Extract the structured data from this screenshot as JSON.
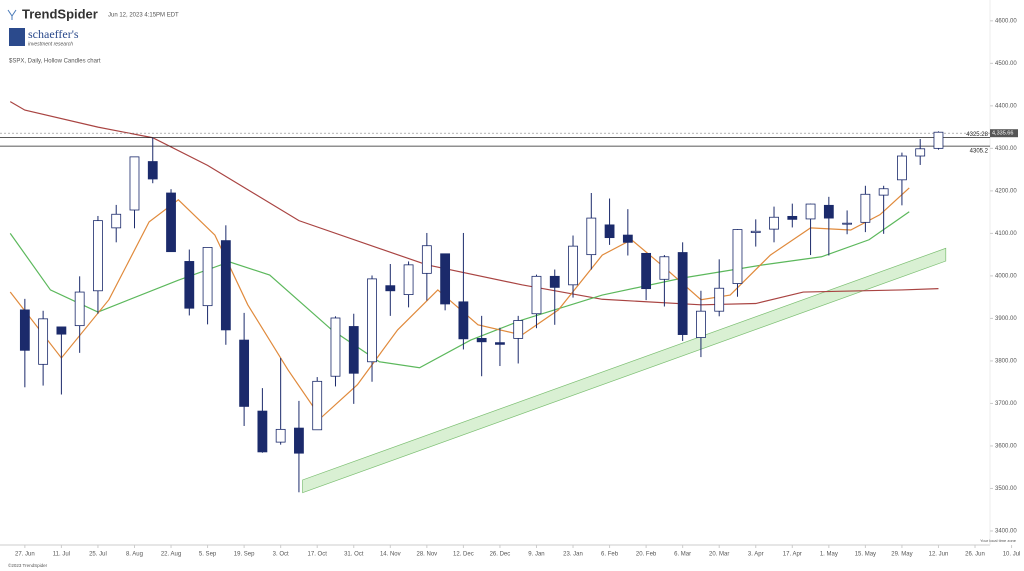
{
  "header": {
    "brand": "TrendSpider",
    "timestamp": "Jun 12, 2023 4:15PM EDT",
    "partner": "schaeffer's",
    "partner_tagline": "investment research",
    "chart_label": "$SPX, Daily, Hollow Candles chart"
  },
  "footer": {
    "copyright": "©2023 TrendSpider",
    "timezone": "Your local time zone"
  },
  "chart_data": {
    "type": "candlestick",
    "xlim": [
      -6.8,
      264.1
    ],
    "ylim": [
      3367,
      4649
    ],
    "xticks": [
      {
        "value": 0,
        "label": "27. Jun"
      },
      {
        "value": 10,
        "label": "11. Jul"
      },
      {
        "value": 20,
        "label": "25. Jul"
      },
      {
        "value": 30,
        "label": "8. Aug"
      },
      {
        "value": 40,
        "label": "22. Aug"
      },
      {
        "value": 50,
        "label": "5. Sep"
      },
      {
        "value": 60,
        "label": "19. Sep"
      },
      {
        "value": 70,
        "label": "3. Oct"
      },
      {
        "value": 80,
        "label": "17. Oct"
      },
      {
        "value": 90,
        "label": "31. Oct"
      },
      {
        "value": 100,
        "label": "14. Nov"
      },
      {
        "value": 110,
        "label": "28. Nov"
      },
      {
        "value": 120,
        "label": "12. Dec"
      },
      {
        "value": 130,
        "label": "26. Dec"
      },
      {
        "value": 140,
        "label": "9. Jan"
      },
      {
        "value": 150,
        "label": "23. Jan"
      },
      {
        "value": 160,
        "label": "6. Feb"
      },
      {
        "value": 170,
        "label": "20. Feb"
      },
      {
        "value": 180,
        "label": "6. Mar"
      },
      {
        "value": 190,
        "label": "20. Mar"
      },
      {
        "value": 200,
        "label": "3. Apr"
      },
      {
        "value": 210,
        "label": "17. Apr"
      },
      {
        "value": 220,
        "label": "1. May"
      },
      {
        "value": 230,
        "label": "15. May"
      },
      {
        "value": 240,
        "label": "29. May"
      },
      {
        "value": 250,
        "label": "12. Jun"
      },
      {
        "value": 260,
        "label": "26. Jun"
      },
      {
        "value": 270,
        "label": "10. Jul"
      }
    ],
    "yticks": [
      {
        "value": 3400,
        "label": "3400.00"
      },
      {
        "value": 3500,
        "label": "3500.00"
      },
      {
        "value": 3600,
        "label": "3600.00"
      },
      {
        "value": 3700,
        "label": "3700.00"
      },
      {
        "value": 3800,
        "label": "3800.00"
      },
      {
        "value": 3900,
        "label": "3900.00"
      },
      {
        "value": 4000,
        "label": "4000.00"
      },
      {
        "value": 4100,
        "label": "4100.00"
      },
      {
        "value": 4200,
        "label": "4200.00"
      },
      {
        "value": 4300,
        "label": "4300.00"
      },
      {
        "value": 4400,
        "label": "4400.00"
      },
      {
        "value": 4500,
        "label": "4500.00"
      },
      {
        "value": 4600,
        "label": "4600.00"
      }
    ],
    "color": "#1b2a6b",
    "candles": {
      "x": [
        0,
        5,
        10,
        15,
        20,
        25,
        30,
        35,
        40,
        45,
        50,
        55,
        60,
        65,
        70,
        75,
        80,
        85,
        90,
        95,
        100,
        105,
        110,
        115,
        120,
        125,
        130,
        135,
        140,
        145,
        150,
        155,
        160,
        165,
        170,
        175,
        180,
        185,
        190,
        195,
        200,
        205,
        210,
        215,
        220,
        225,
        230,
        235,
        240,
        245,
        250
      ],
      "open": [
        3920,
        3792,
        3880,
        3883,
        3965,
        4113,
        4155,
        4269,
        4195,
        4034,
        3930,
        4083,
        3849,
        3682,
        3609,
        3642,
        3638,
        3764,
        3881,
        3798,
        3977,
        3956,
        4006,
        4052,
        3939,
        3853,
        3843,
        3853,
        3911,
        3999,
        3979,
        4050,
        4120,
        4096,
        4053,
        3992,
        4055,
        3855,
        3917,
        3982,
        4102,
        4110,
        4140,
        4134,
        4166,
        4124,
        4126,
        4190,
        4226,
        4282,
        4300
      ],
      "high": [
        3946,
        3918,
        3880,
        3999,
        4141,
        4167,
        4280,
        4325,
        4204,
        4062,
        4067,
        4119,
        3913,
        3736,
        3807,
        3706,
        3762,
        3905,
        3911,
        4001,
        4028,
        4034,
        4101,
        4052,
        4101,
        3906,
        3878,
        3906,
        4003,
        4015,
        4095,
        4195,
        4182,
        4157,
        4053,
        4049,
        4079,
        3965,
        4039,
        4110,
        4133,
        4163,
        4170,
        4170,
        4186,
        4154,
        4212,
        4212,
        4290,
        4322,
        4340
      ],
      "low": [
        3738,
        3742,
        3721,
        3819,
        3911,
        4079,
        4112,
        4218,
        4057,
        3907,
        3886,
        3838,
        3647,
        3584,
        3603,
        3491,
        3647,
        3740,
        3699,
        3751,
        3906,
        3926,
        3942,
        3919,
        3827,
        3764,
        3788,
        3794,
        3877,
        3885,
        3949,
        4015,
        4073,
        4048,
        3943,
        3928,
        3847,
        3809,
        3905,
        3951,
        4069,
        4079,
        4114,
        4049,
        4048,
        4098,
        4103,
        4099,
        4166,
        4261,
        4297
      ],
      "close": [
        3825,
        3899,
        3863,
        3962,
        4130,
        4145,
        4280,
        4228,
        4057,
        3924,
        4067,
        3873,
        3693,
        3586,
        3639,
        3583,
        3752,
        3901,
        3771,
        3993,
        3965,
        4026,
        4071,
        3934,
        3852,
        3845,
        3839,
        3895,
        3999,
        3973,
        4070,
        4136,
        4090,
        4079,
        3970,
        4045,
        3862,
        3917,
        3971,
        4109,
        4105,
        4138,
        4133,
        4169,
        4136,
        4124,
        4192,
        4205,
        4282,
        4299,
        4338
      ]
    },
    "lines": [
      {
        "color": "#a94442",
        "x": [
          -4,
          0,
          20,
          35,
          50,
          75,
          110,
          136,
          158,
          185,
          200,
          213,
          240,
          250
        ],
        "values": [
          4410,
          4390,
          4350,
          4325,
          4260,
          4130,
          4026,
          3979,
          3945,
          3932,
          3935,
          3962,
          3967,
          3970
        ]
      },
      {
        "color": "#5cb85c",
        "x": [
          -4,
          7,
          20,
          42,
          56,
          67,
          84,
          97,
          108,
          122,
          136,
          158,
          180,
          202,
          218,
          231,
          242
        ],
        "values": [
          4100,
          3967,
          3915,
          3990,
          4033,
          4002,
          3873,
          3798,
          3784,
          3849,
          3896,
          3955,
          3995,
          4026,
          4045,
          4085,
          4151
        ]
      },
      {
        "color": "#e08a3c",
        "x": [
          -4,
          10,
          23,
          34,
          42,
          52,
          61,
          72,
          81,
          91,
          102,
          113,
          124,
          136,
          146,
          158,
          166,
          175,
          185,
          193,
          204,
          215,
          226,
          234,
          242
        ],
        "values": [
          3962,
          3807,
          3944,
          4127,
          4179,
          4096,
          3932,
          3779,
          3666,
          3744,
          3873,
          3967,
          3885,
          3861,
          3920,
          4049,
          4085,
          4020,
          3944,
          3955,
          4049,
          4113,
          4108,
          4144,
          4207
        ]
      }
    ],
    "trend_channel": {
      "x": [
        76,
        252
      ],
      "lower": [
        3490,
        4035
      ],
      "upper": [
        3520,
        4065
      ]
    },
    "levels": [
      4325.28,
      4305.2
    ],
    "last_price": {
      "value": 4335.66,
      "label": "4,335.66"
    }
  }
}
